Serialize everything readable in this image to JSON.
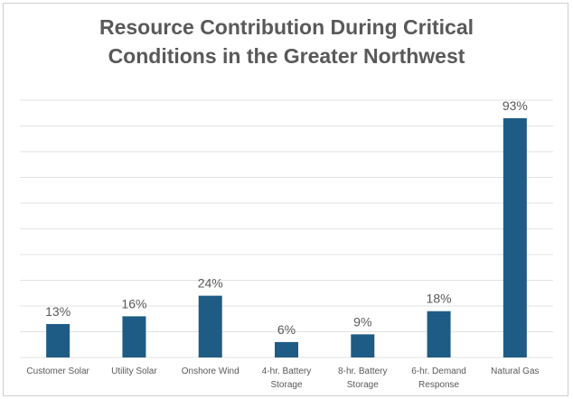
{
  "chart_data": {
    "type": "bar",
    "title_lines": [
      "Resource Contribution During Critical",
      "Conditions in the Greater Northwest"
    ],
    "categories": [
      [
        "Customer Solar"
      ],
      [
        "Utility Solar"
      ],
      [
        "Onshore Wind"
      ],
      [
        "4-hr. Battery",
        "Storage"
      ],
      [
        "8-hr. Battery",
        "Storage"
      ],
      [
        "6-hr. Demand",
        "Response"
      ],
      [
        "Natural Gas"
      ]
    ],
    "values": [
      13,
      16,
      24,
      6,
      9,
      18,
      93
    ],
    "value_labels": [
      "13%",
      "16%",
      "24%",
      "6%",
      "9%",
      "18%",
      "93%"
    ],
    "ylim": [
      0,
      100
    ],
    "grid": true,
    "legend": false,
    "colors": {
      "bar": "#1f5c85",
      "grid": "#e3e3e3",
      "text": "#595959"
    }
  }
}
